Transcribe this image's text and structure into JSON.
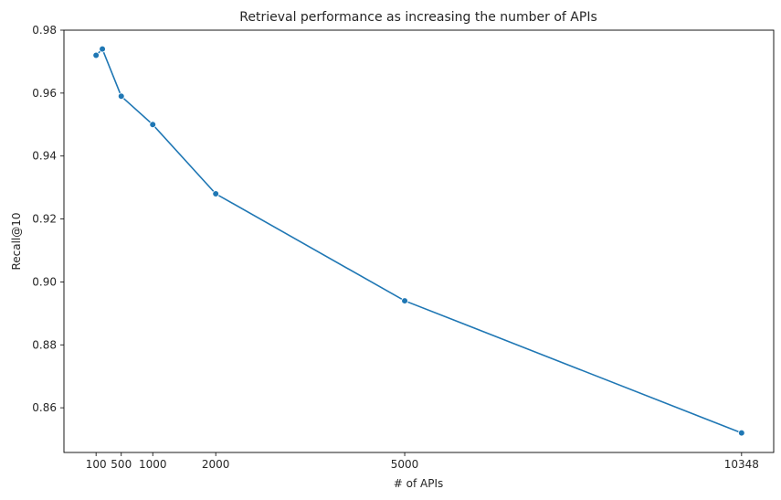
{
  "chart_data": {
    "type": "line",
    "title": "Retrieval performance as increasing the number of APIs",
    "xlabel": "# of APIs",
    "ylabel": "Recall@10",
    "x_ticks": [
      100,
      500,
      1000,
      2000,
      5000,
      10348
    ],
    "y_ticks": [
      "0.86",
      "0.88",
      "0.90",
      "0.92",
      "0.94",
      "0.96",
      "0.98"
    ],
    "xlim": [
      -410,
      10858
    ],
    "ylim": [
      0.8458,
      0.98
    ],
    "grid": false,
    "series": [
      {
        "color": "#1f77b4",
        "marker": "circle",
        "x": [
          100,
          200,
          500,
          1000,
          2000,
          5000,
          10348
        ],
        "y": [
          0.972,
          0.974,
          0.959,
          0.95,
          0.928,
          0.894,
          0.852
        ]
      }
    ]
  }
}
